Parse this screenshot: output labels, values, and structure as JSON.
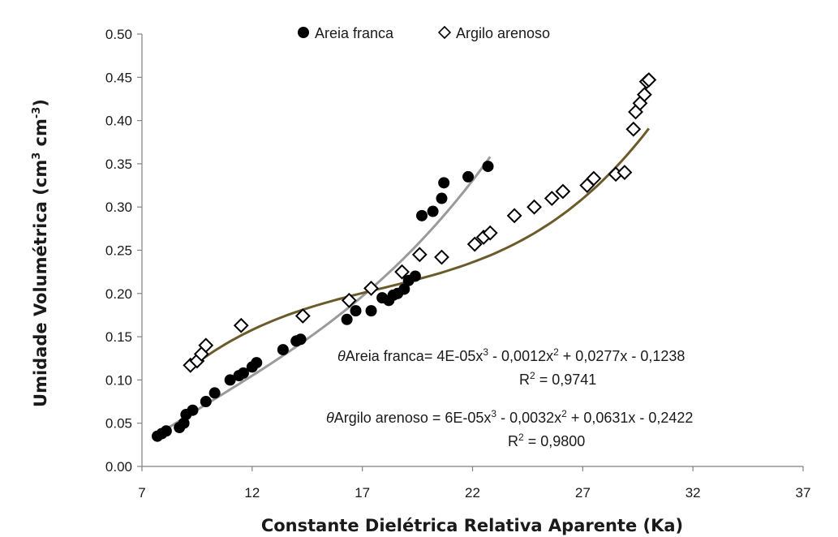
{
  "chart_data": {
    "type": "scatter",
    "xlabel": "Constante Dielétrica Relativa Aparente (Ka)",
    "ylabel_main": "Umidade Volumétrica (cm",
    "ylabel_mid": " cm",
    "ylabel_end": ")",
    "ylabel_sup1": "3",
    "ylabel_sup2": "-3",
    "xlim": [
      7,
      37
    ],
    "ylim": [
      0,
      0.5
    ],
    "x_ticks": [
      7,
      12,
      17,
      22,
      27,
      32,
      37
    ],
    "y_ticks": [
      0,
      0.05,
      0.1,
      0.15,
      0.2,
      0.25,
      0.3,
      0.35,
      0.4,
      0.45,
      0.5
    ],
    "y_tick_labels": [
      "0.00",
      "0.05",
      "0.10",
      "0.15",
      "0.20",
      "0.25",
      "0.30",
      "0.35",
      "0.40",
      "0.45",
      "0.50"
    ],
    "legend_position": "top",
    "series": [
      {
        "name": "Areia franca",
        "marker": "filled-circle",
        "color": "#000000",
        "points": [
          [
            7.7,
            0.035
          ],
          [
            7.9,
            0.038
          ],
          [
            8.1,
            0.041
          ],
          [
            8.7,
            0.045
          ],
          [
            8.9,
            0.05
          ],
          [
            9.0,
            0.06
          ],
          [
            9.3,
            0.065
          ],
          [
            9.9,
            0.075
          ],
          [
            10.3,
            0.085
          ],
          [
            11.0,
            0.1
          ],
          [
            11.4,
            0.105
          ],
          [
            11.6,
            0.108
          ],
          [
            12.0,
            0.115
          ],
          [
            12.2,
            0.12
          ],
          [
            13.4,
            0.135
          ],
          [
            14.0,
            0.145
          ],
          [
            14.2,
            0.147
          ],
          [
            16.3,
            0.17
          ],
          [
            16.7,
            0.18
          ],
          [
            17.4,
            0.18
          ],
          [
            17.9,
            0.195
          ],
          [
            18.2,
            0.192
          ],
          [
            18.4,
            0.198
          ],
          [
            18.6,
            0.2
          ],
          [
            18.9,
            0.205
          ],
          [
            19.1,
            0.215
          ],
          [
            19.4,
            0.22
          ],
          [
            19.7,
            0.29
          ],
          [
            20.2,
            0.295
          ],
          [
            20.6,
            0.31
          ],
          [
            20.7,
            0.328
          ],
          [
            21.8,
            0.335
          ],
          [
            22.7,
            0.347
          ]
        ],
        "trend": {
          "coeffs": [
            4e-05,
            -0.0012,
            0.0277,
            -0.1238
          ],
          "x_range": [
            7.7,
            22.8
          ]
        },
        "equation_theta": "θ",
        "equation_text": "Areia franca= 4E-05x",
        "equation_rest": " - 0,0012x",
        "equation_tail": " + 0,0277x - 0,1238",
        "r2_label": "R",
        "r2_value": " = 0,9741"
      },
      {
        "name": "Argilo arenoso",
        "marker": "open-diamond",
        "color": "#000000",
        "points": [
          [
            9.2,
            0.117
          ],
          [
            9.5,
            0.122
          ],
          [
            9.7,
            0.13
          ],
          [
            9.9,
            0.14
          ],
          [
            11.5,
            0.163
          ],
          [
            14.3,
            0.174
          ],
          [
            16.4,
            0.192
          ],
          [
            17.4,
            0.206
          ],
          [
            18.8,
            0.225
          ],
          [
            19.6,
            0.245
          ],
          [
            20.6,
            0.242
          ],
          [
            22.1,
            0.257
          ],
          [
            22.5,
            0.265
          ],
          [
            22.8,
            0.27
          ],
          [
            23.9,
            0.29
          ],
          [
            24.8,
            0.3
          ],
          [
            25.6,
            0.31
          ],
          [
            26.1,
            0.318
          ],
          [
            27.2,
            0.325
          ],
          [
            27.5,
            0.333
          ],
          [
            28.5,
            0.338
          ],
          [
            28.9,
            0.34
          ],
          [
            29.3,
            0.39
          ],
          [
            29.4,
            0.41
          ],
          [
            29.6,
            0.42
          ],
          [
            29.8,
            0.43
          ],
          [
            29.9,
            0.445
          ],
          [
            30.0,
            0.447
          ]
        ],
        "trend": {
          "coeffs": [
            6e-05,
            -0.0032,
            0.0631,
            -0.2422
          ],
          "x_range": [
            9.2,
            30.0
          ]
        },
        "equation_theta": "θ",
        "equation_text": "Argilo arenoso = 6E-05x",
        "equation_rest": " - 0,0032x",
        "equation_tail": " + 0,0631x - 0,2422",
        "r2_label": "R",
        "r2_value": " = 0,9800"
      }
    ],
    "trend_colors": {
      "areia": "#9a9a9a",
      "argilo": "#6b5a2a"
    },
    "superscripts": {
      "cube": "3",
      "square": "2"
    }
  }
}
